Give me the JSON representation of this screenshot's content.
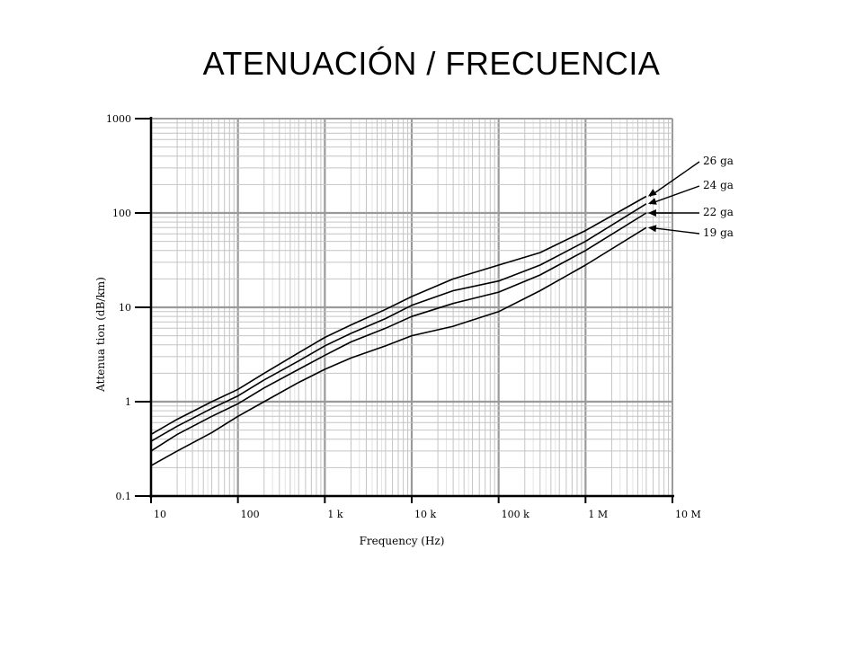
{
  "slide": {
    "title": "ATENUACIÓN / FRECUENCIA"
  },
  "chart_data": {
    "type": "line",
    "xscale": "log",
    "yscale": "log",
    "xlim": [
      10,
      10000000
    ],
    "ylim": [
      0.1,
      1000
    ],
    "xlabel": "Frequency (Hz)",
    "ylabel": "Attenua tion (dB/km)",
    "x_ticks": [
      {
        "value": 10,
        "label": "10"
      },
      {
        "value": 100,
        "label": "100"
      },
      {
        "value": 1000,
        "label": "1 k"
      },
      {
        "value": 10000,
        "label": "10 k"
      },
      {
        "value": 100000,
        "label": "100 k"
      },
      {
        "value": 1000000,
        "label": "1 M"
      },
      {
        "value": 10000000,
        "label": "10 M"
      }
    ],
    "y_ticks": [
      {
        "value": 0.1,
        "label": "0.1"
      },
      {
        "value": 1,
        "label": "1"
      },
      {
        "value": 10,
        "label": "10"
      },
      {
        "value": 100,
        "label": "100"
      },
      {
        "value": 1000,
        "label": "1000"
      }
    ],
    "grid": true,
    "series": [
      {
        "name": "26 ga",
        "x": [
          10,
          20,
          50,
          100,
          200,
          500,
          1000,
          2000,
          5000,
          10000,
          30000,
          100000,
          300000,
          1000000,
          5000000
        ],
        "y": [
          0.45,
          0.65,
          1.0,
          1.35,
          2.0,
          3.3,
          4.8,
          6.5,
          9.5,
          13,
          20,
          28,
          38,
          65,
          150
        ]
      },
      {
        "name": "24 ga",
        "x": [
          10,
          20,
          50,
          100,
          200,
          500,
          1000,
          2000,
          5000,
          10000,
          30000,
          100000,
          300000,
          1000000,
          5000000
        ],
        "y": [
          0.38,
          0.55,
          0.85,
          1.15,
          1.7,
          2.7,
          3.9,
          5.3,
          7.6,
          10.5,
          15,
          19,
          28,
          50,
          125
        ]
      },
      {
        "name": "22 ga",
        "x": [
          10,
          20,
          50,
          100,
          200,
          500,
          1000,
          2000,
          5000,
          10000,
          30000,
          100000,
          300000,
          1000000,
          5000000
        ],
        "y": [
          0.3,
          0.45,
          0.7,
          0.95,
          1.4,
          2.2,
          3.1,
          4.3,
          6.0,
          8.0,
          11,
          14.5,
          22,
          40,
          100
        ]
      },
      {
        "name": "19 ga",
        "x": [
          10,
          20,
          50,
          100,
          200,
          500,
          1000,
          2000,
          5000,
          10000,
          30000,
          100000,
          300000,
          1000000,
          5000000
        ],
        "y": [
          0.21,
          0.3,
          0.47,
          0.7,
          1.0,
          1.6,
          2.2,
          2.9,
          3.9,
          5.0,
          6.3,
          9.0,
          15,
          28,
          70
        ]
      }
    ]
  }
}
